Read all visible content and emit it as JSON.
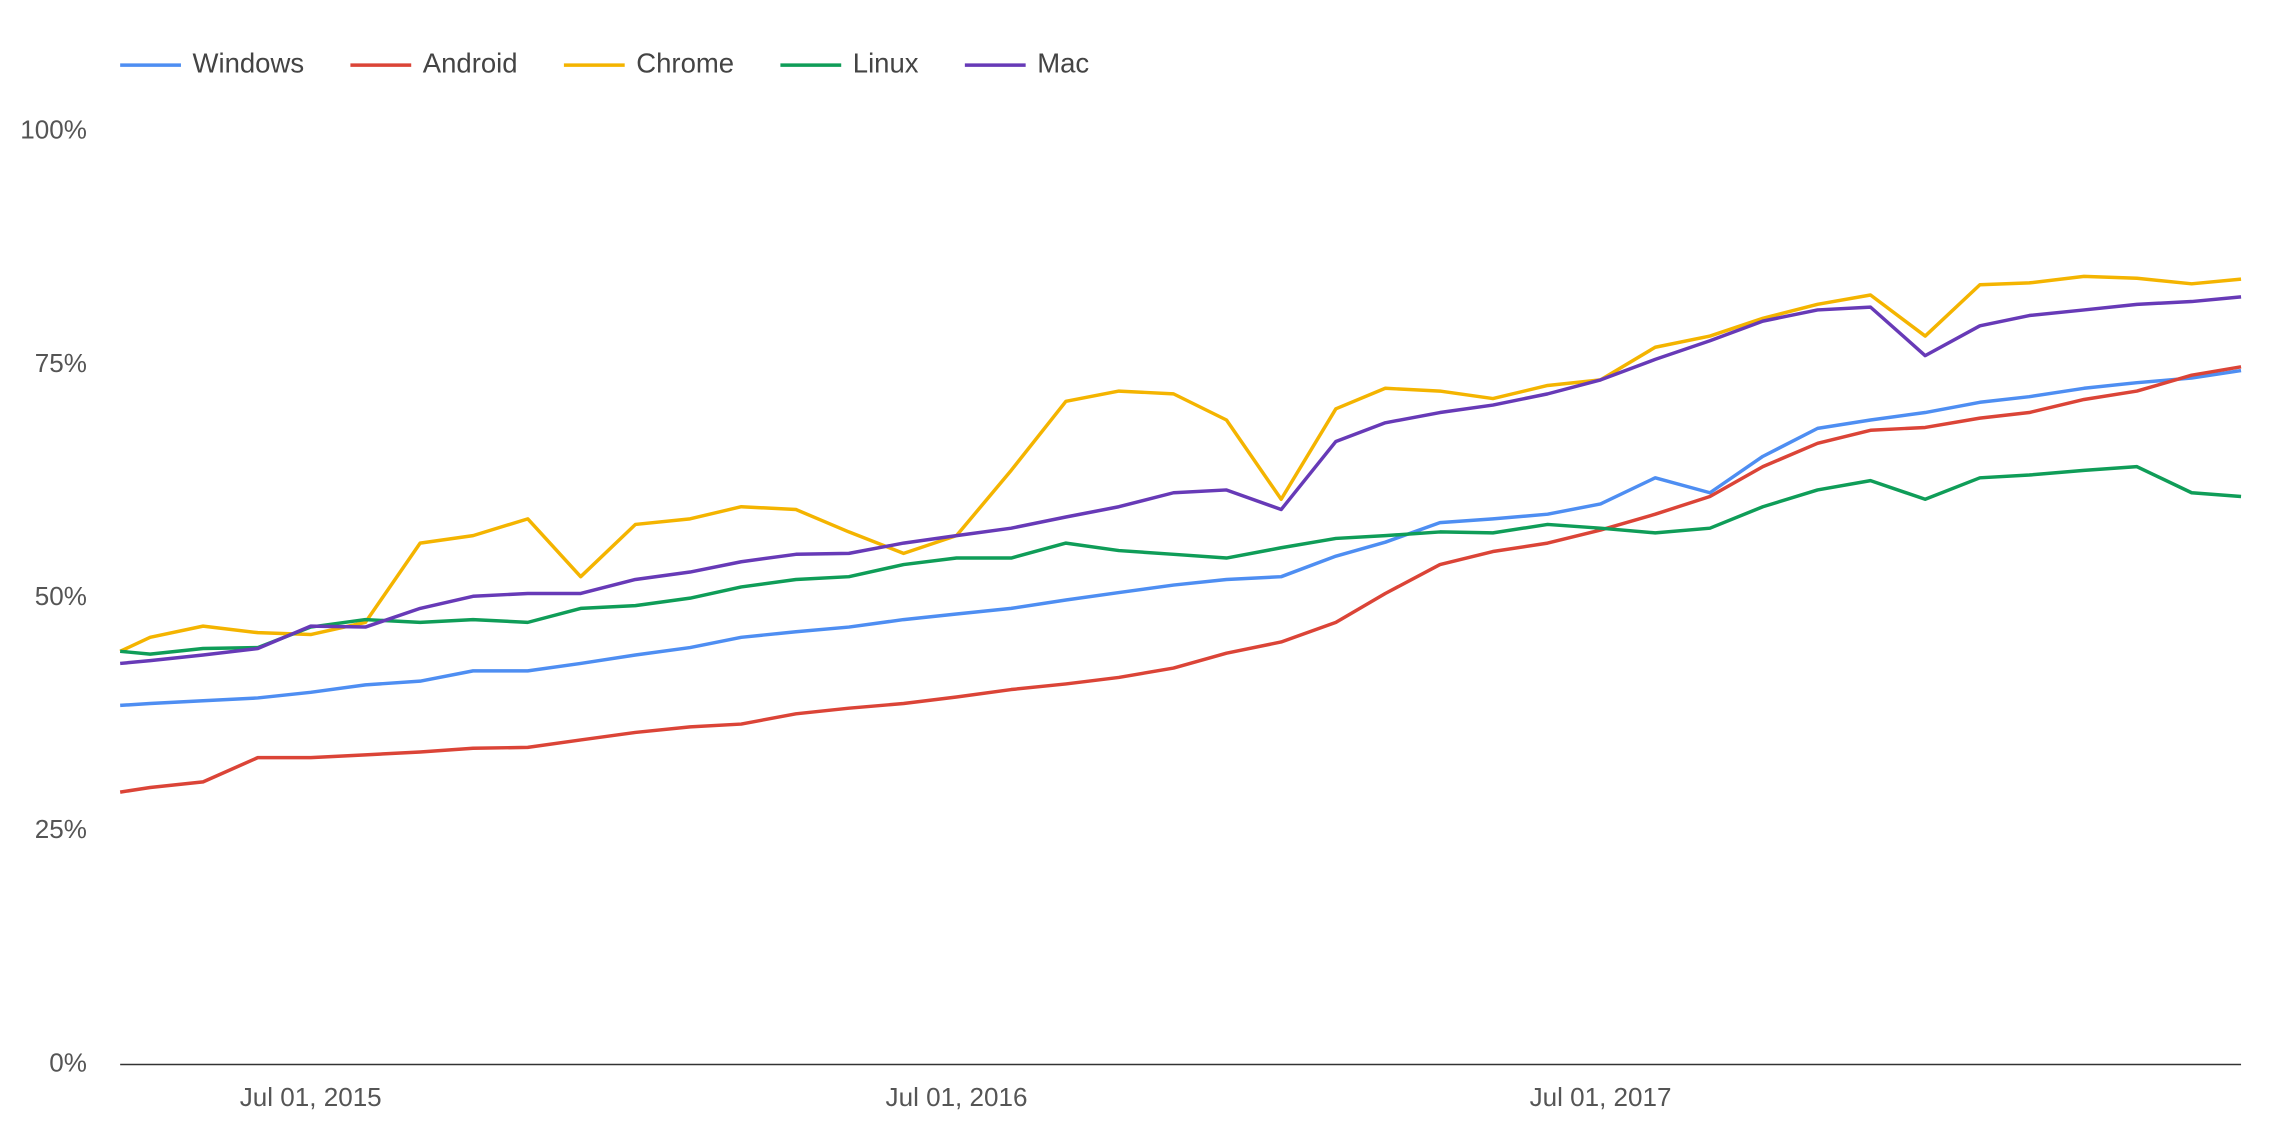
{
  "chart_data": {
    "type": "line",
    "x": [
      "2015-03-15",
      "2015-04-01",
      "2015-05-01",
      "2015-06-01",
      "2015-07-01",
      "2015-08-01",
      "2015-09-01",
      "2015-10-01",
      "2015-11-01",
      "2015-12-01",
      "2016-01-01",
      "2016-02-01",
      "2016-03-01",
      "2016-04-01",
      "2016-05-01",
      "2016-06-01",
      "2016-07-01",
      "2016-08-01",
      "2016-09-01",
      "2016-10-01",
      "2016-11-01",
      "2016-12-01",
      "2017-01-01",
      "2017-02-01",
      "2017-03-01",
      "2017-04-01",
      "2017-05-01",
      "2017-06-01",
      "2017-07-01",
      "2017-08-01",
      "2017-09-01",
      "2017-10-01",
      "2017-11-01",
      "2017-12-01",
      "2018-01-01",
      "2018-02-01",
      "2018-03-01",
      "2018-04-01",
      "2018-05-01",
      "2018-06-01",
      "2018-06-29"
    ],
    "xlim": [
      "2015-03-15",
      "2018-06-29"
    ],
    "xticks": [
      {
        "value": "2015-07-01",
        "label": "Jul 01, 2015"
      },
      {
        "value": "2016-07-01",
        "label": "Jul 01, 2016"
      },
      {
        "value": "2017-07-01",
        "label": "Jul 01, 2017"
      }
    ],
    "ylim": [
      0,
      100
    ],
    "yticks": [
      {
        "value": 0,
        "label": "0%"
      },
      {
        "value": 25,
        "label": "25%"
      },
      {
        "value": 50,
        "label": "50%"
      },
      {
        "value": 75,
        "label": "75%"
      },
      {
        "value": 100,
        "label": "100%"
      }
    ],
    "legend": "top-left",
    "series": [
      {
        "name": "Windows",
        "color": "#4e8ef2",
        "values": [
          38.5,
          38.7,
          39.0,
          39.3,
          39.9,
          40.7,
          41.1,
          42.2,
          42.2,
          43.0,
          43.9,
          44.7,
          45.8,
          46.4,
          46.9,
          47.7,
          48.3,
          48.9,
          49.8,
          50.6,
          51.4,
          52.0,
          52.3,
          54.5,
          56.0,
          58.1,
          58.5,
          59.0,
          60.1,
          62.9,
          61.3,
          65.2,
          68.2,
          69.1,
          69.9,
          71.0,
          71.6,
          72.5,
          73.1,
          73.6,
          74.4
        ]
      },
      {
        "name": "Android",
        "color": "#db4437",
        "values": [
          29.2,
          29.7,
          30.3,
          32.9,
          32.9,
          33.2,
          33.5,
          33.9,
          34.0,
          34.8,
          35.6,
          36.2,
          36.5,
          37.6,
          38.2,
          38.7,
          39.4,
          40.2,
          40.8,
          41.5,
          42.5,
          44.1,
          45.3,
          47.4,
          50.5,
          53.6,
          55.0,
          55.9,
          57.3,
          59.0,
          60.9,
          64.1,
          66.6,
          68.0,
          68.3,
          69.3,
          69.9,
          71.3,
          72.2,
          73.9,
          74.8
        ]
      },
      {
        "name": "Chrome",
        "color": "#f4b400",
        "values": [
          44.3,
          45.8,
          47.0,
          46.3,
          46.1,
          47.4,
          55.9,
          56.7,
          58.5,
          52.3,
          57.9,
          58.5,
          59.8,
          59.5,
          57.1,
          54.8,
          56.7,
          63.7,
          71.1,
          72.2,
          71.9,
          69.1,
          60.6,
          70.3,
          72.5,
          72.2,
          71.4,
          72.8,
          73.4,
          76.9,
          78.1,
          80.0,
          81.5,
          82.5,
          78.1,
          83.6,
          83.8,
          84.5,
          84.3,
          83.7,
          84.2
        ]
      },
      {
        "name": "Linux",
        "color": "#0f9d58",
        "values": [
          44.3,
          44.0,
          44.6,
          44.7,
          46.9,
          47.7,
          47.4,
          47.7,
          47.4,
          48.9,
          49.2,
          50.0,
          51.2,
          52.0,
          52.3,
          53.6,
          54.3,
          54.3,
          55.9,
          55.1,
          54.7,
          54.3,
          55.4,
          56.4,
          56.7,
          57.1,
          57.0,
          57.9,
          57.5,
          57.0,
          57.5,
          59.8,
          61.6,
          62.6,
          60.6,
          62.9,
          63.2,
          63.7,
          64.1,
          61.3,
          60.9
        ]
      },
      {
        "name": "Mac",
        "color": "#673ab7",
        "values": [
          43.0,
          43.3,
          43.9,
          44.6,
          47.0,
          46.9,
          48.9,
          50.2,
          50.5,
          50.5,
          52.0,
          52.8,
          53.9,
          54.7,
          54.8,
          55.9,
          56.7,
          57.5,
          58.7,
          59.8,
          61.3,
          61.6,
          59.5,
          66.8,
          68.8,
          69.9,
          70.7,
          71.9,
          73.4,
          75.6,
          77.6,
          79.7,
          80.9,
          81.2,
          76.0,
          79.2,
          80.3,
          80.9,
          81.5,
          81.8,
          82.3
        ]
      }
    ]
  }
}
